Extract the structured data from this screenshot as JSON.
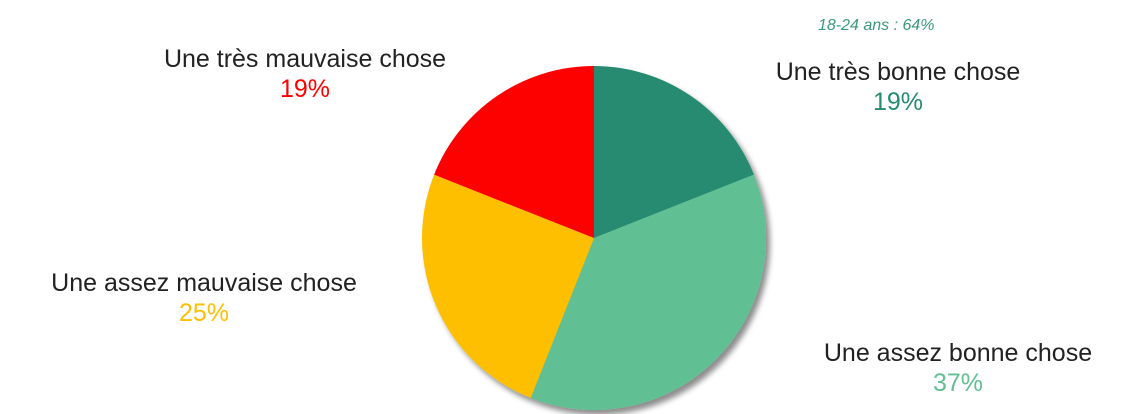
{
  "chart_data": {
    "type": "pie",
    "annotation": "18-24 ans : 64%",
    "slices": [
      {
        "label": "Une très bonne chose",
        "value": 19,
        "display": "19%",
        "color": "#258b71"
      },
      {
        "label": "Une assez bonne chose",
        "value": 37,
        "display": "37%",
        "color": "#61bf93"
      },
      {
        "label": "Une assez mauvaise chose",
        "value": 25,
        "display": "25%",
        "color": "#fdbf00"
      },
      {
        "label": "Une très mauvaise chose",
        "value": 19,
        "display": "19%",
        "color": "#fd0000"
      }
    ]
  },
  "colors": {
    "annotation": "#3a9a7e"
  }
}
